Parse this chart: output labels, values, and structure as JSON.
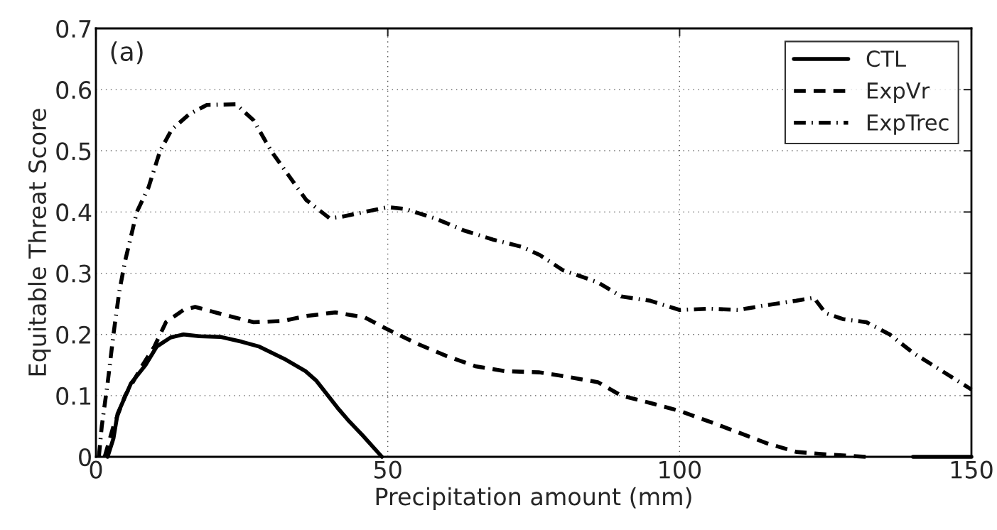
{
  "chart_data": {
    "type": "line",
    "xlabel": "Precipitation amount (mm)",
    "ylabel": "Equitable Threat Score",
    "annotations": [
      "(a)"
    ],
    "xlim": [
      0,
      150
    ],
    "xticks": [
      0,
      50,
      100,
      150
    ],
    "ylim": [
      0,
      0.7
    ],
    "yticks": [
      0,
      0.1,
      0.2,
      0.3,
      0.4,
      0.5,
      0.6,
      0.7
    ],
    "grid": true,
    "legend": "top right",
    "series": [
      {
        "name": "CTL",
        "color": "#000000",
        "line_style": "solid",
        "x": [
          2,
          3,
          3.7,
          6,
          8.5,
          10.4,
          12.8,
          15,
          17.7,
          21.3,
          25,
          28,
          32.3,
          35.9,
          37.7,
          41.4,
          43.2,
          45.7,
          49,
          100,
          140,
          150
        ],
        "values": [
          0,
          0.03,
          0.07,
          0.12,
          0.15,
          0.18,
          0.195,
          0.2,
          0.197,
          0.196,
          0.188,
          0.18,
          0.16,
          0.14,
          0.125,
          0.08,
          0.06,
          0.035,
          0,
          null,
          0,
          0
        ]
      },
      {
        "name": "ExpVr",
        "color": "#000000",
        "line_style": "dashed",
        "x": [
          1.5,
          3,
          5,
          8,
          10,
          12,
          15,
          17,
          22,
          27,
          32,
          36,
          41,
          46,
          50,
          55,
          60,
          65,
          70,
          76,
          80,
          86,
          90,
          95,
          100,
          105,
          110,
          115,
          120,
          125,
          132
        ],
        "values": [
          0,
          0.05,
          0.1,
          0.15,
          0.18,
          0.22,
          0.24,
          0.245,
          0.232,
          0.22,
          0.222,
          0.23,
          0.236,
          0.228,
          0.208,
          0.185,
          0.165,
          0.148,
          0.14,
          0.138,
          0.132,
          0.122,
          0.1,
          0.088,
          0.075,
          0.058,
          0.04,
          0.022,
          0.008,
          0.004,
          0
        ]
      },
      {
        "name": "ExpTrec",
        "color": "#000000",
        "line_style": "dashdot",
        "x": [
          0.5,
          1,
          2,
          3,
          4,
          5,
          7,
          9,
          11,
          13,
          16,
          19,
          24,
          27,
          30,
          33,
          36,
          40,
          42,
          46,
          50,
          53,
          58,
          63,
          68,
          73,
          76,
          80,
          86,
          90,
          95,
          100,
          105,
          110,
          115,
          120,
          123,
          125,
          128,
          132,
          136,
          140,
          145,
          150
        ],
        "values": [
          0,
          0.05,
          0.12,
          0.2,
          0.27,
          0.32,
          0.4,
          0.44,
          0.5,
          0.535,
          0.56,
          0.575,
          0.576,
          0.55,
          0.5,
          0.46,
          0.42,
          0.39,
          0.392,
          0.4,
          0.408,
          0.405,
          0.39,
          0.37,
          0.355,
          0.343,
          0.33,
          0.305,
          0.285,
          0.262,
          0.255,
          0.24,
          0.242,
          0.24,
          0.248,
          0.255,
          0.26,
          0.235,
          0.225,
          0.22,
          0.2,
          0.17,
          0.14,
          0.11
        ]
      }
    ]
  }
}
